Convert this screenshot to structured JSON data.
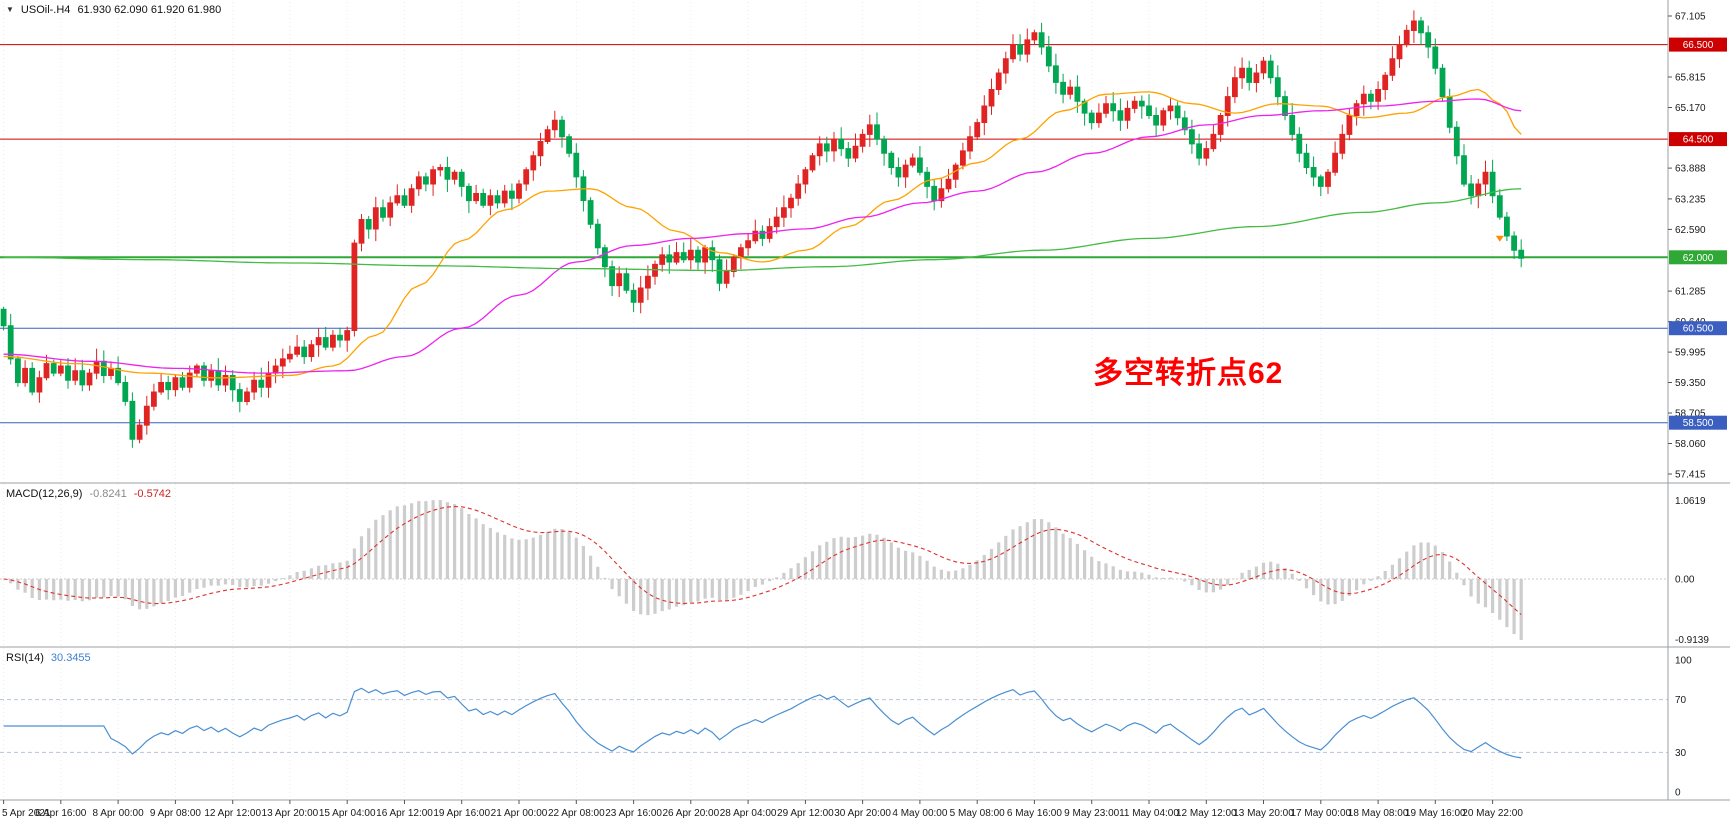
{
  "header": {
    "collapse_icon": "▼",
    "symbol_period": "USOil-.H4",
    "ohlc": "61.930 62.090 61.920 61.980"
  },
  "annotation": {
    "text": "多空转折点62",
    "color": "#ff0000"
  },
  "indicators": {
    "macd": {
      "label": "MACD(12,26,9)",
      "value_main": "-0.8241",
      "value_signal": "-0.5742",
      "scale_max": "1.0619",
      "scale_zero": "0.00",
      "scale_min": "-0.9139",
      "histogram_color": "#cdcdcd",
      "signal_color": "#e03030"
    },
    "rsi": {
      "label": "RSI(14)",
      "value": "30.3455",
      "line_color": "#4a8fd3",
      "levels": [
        70,
        30
      ],
      "scale_points": [
        {
          "label": "100",
          "value": 100
        },
        {
          "label": "70",
          "value": 70
        },
        {
          "label": "30",
          "value": 30
        },
        {
          "label": "0",
          "value": 0
        }
      ]
    }
  },
  "price_axis": {
    "ticks": [
      {
        "label": "67.105",
        "price": 67.105
      },
      {
        "label": "65.815",
        "price": 65.815
      },
      {
        "label": "65.170",
        "price": 65.17
      },
      {
        "label": "63.888",
        "price": 63.888
      },
      {
        "label": "63.235",
        "price": 63.235
      },
      {
        "label": "62.590",
        "price": 62.59
      },
      {
        "label": "61.285",
        "price": 61.285
      },
      {
        "label": "60.640",
        "price": 60.64
      },
      {
        "label": "59.995",
        "price": 59.995
      },
      {
        "label": "59.350",
        "price": 59.35
      },
      {
        "label": "58.705",
        "price": 58.705
      },
      {
        "label": "58.060",
        "price": 58.06
      },
      {
        "label": "57.415",
        "price": 57.415
      }
    ],
    "badges": [
      {
        "label": "66.500",
        "price": 66.5,
        "color": "#cc0000"
      },
      {
        "label": "64.500",
        "price": 64.5,
        "color": "#cc0000"
      },
      {
        "label": "62.000",
        "price": 62.0,
        "color": "#2fa836"
      },
      {
        "label": "60.500",
        "price": 60.5,
        "color": "#3b5fc0"
      },
      {
        "label": "58.500",
        "price": 58.5,
        "color": "#3b5fc0"
      }
    ]
  },
  "time_axis": [
    "5 Apr 2021",
    "6 Apr 16:00",
    "8 Apr 00:00",
    "9 Apr 08:00",
    "12 Apr 12:00",
    "13 Apr 20:00",
    "15 Apr 04:00",
    "16 Apr 12:00",
    "19 Apr 16:00",
    "21 Apr 00:00",
    "22 Apr 08:00",
    "23 Apr 16:00",
    "26 Apr 20:00",
    "28 Apr 04:00",
    "29 Apr 12:00",
    "30 Apr 20:00",
    "4 May 00:00",
    "5 May 08:00",
    "6 May 16:00",
    "9 May 23:00",
    "11 May 04:00",
    "12 May 12:00",
    "13 May 20:00",
    "17 May 00:00",
    "18 May 08:00",
    "19 May 16:00",
    "20 May 22:00"
  ],
  "chart_data": {
    "type": "candlestick",
    "symbol": "USOil",
    "timeframe": "H4",
    "title": "USOil-.H4",
    "price_range": [
      57.415,
      67.105
    ],
    "bars_per_time_label": 8,
    "right_gap_bars": 20,
    "up_color": "#df2423",
    "down_color": "#00a651",
    "closes": [
      60.55,
      59.85,
      59.35,
      59.65,
      59.15,
      59.45,
      59.75,
      59.55,
      59.7,
      59.4,
      59.6,
      59.3,
      59.55,
      59.8,
      59.5,
      59.65,
      59.35,
      58.95,
      58.15,
      58.45,
      58.85,
      59.15,
      59.35,
      59.2,
      59.45,
      59.25,
      59.55,
      59.7,
      59.4,
      59.6,
      59.3,
      59.5,
      59.2,
      58.95,
      59.15,
      59.4,
      59.25,
      59.55,
      59.7,
      59.85,
      59.95,
      60.1,
      59.9,
      60.15,
      60.3,
      60.1,
      60.35,
      60.25,
      60.45,
      62.3,
      62.8,
      62.6,
      63.05,
      62.85,
      63.15,
      63.3,
      63.1,
      63.45,
      63.7,
      63.55,
      63.85,
      63.9,
      63.65,
      63.8,
      63.5,
      63.2,
      63.35,
      63.1,
      63.3,
      63.15,
      63.4,
      63.25,
      63.55,
      63.85,
      64.15,
      64.45,
      64.7,
      64.9,
      64.55,
      64.2,
      63.7,
      63.2,
      62.7,
      62.2,
      61.8,
      61.4,
      61.65,
      61.3,
      61.05,
      61.35,
      61.6,
      61.85,
      62.05,
      61.9,
      62.1,
      61.95,
      62.15,
      61.9,
      62.2,
      61.95,
      61.45,
      61.7,
      62.0,
      62.2,
      62.35,
      62.55,
      62.4,
      62.65,
      62.85,
      63.05,
      63.25,
      63.55,
      63.85,
      64.15,
      64.4,
      64.25,
      64.5,
      64.3,
      64.1,
      64.35,
      64.6,
      64.8,
      64.5,
      64.2,
      63.9,
      63.7,
      63.95,
      64.1,
      63.8,
      63.5,
      63.2,
      63.45,
      63.65,
      63.95,
      64.25,
      64.55,
      64.85,
      65.2,
      65.55,
      65.9,
      66.2,
      66.5,
      66.3,
      66.6,
      66.75,
      66.45,
      66.05,
      65.7,
      65.45,
      65.6,
      65.3,
      65.05,
      64.85,
      65.05,
      65.25,
      65.1,
      64.9,
      65.15,
      65.3,
      65.2,
      65.0,
      64.8,
      65.1,
      65.2,
      64.95,
      64.7,
      64.4,
      64.1,
      64.3,
      64.6,
      65.0,
      65.4,
      65.8,
      66.0,
      65.7,
      65.9,
      66.15,
      65.8,
      65.4,
      65.0,
      64.6,
      64.2,
      63.9,
      63.7,
      63.5,
      63.8,
      64.2,
      64.6,
      65.0,
      65.25,
      65.45,
      65.3,
      65.55,
      65.85,
      66.2,
      66.5,
      66.8,
      67.0,
      66.75,
      66.45,
      66.0,
      65.4,
      64.75,
      64.15,
      63.55,
      63.3,
      63.55,
      63.8,
      63.3,
      62.85,
      62.45,
      62.15,
      61.98
    ],
    "hlines": [
      {
        "price": 66.5,
        "color": "#cc0000",
        "width": 1
      },
      {
        "price": 64.5,
        "color": "#cc0000",
        "width": 1
      },
      {
        "price": 62.0,
        "color": "#2fa836",
        "width": 2
      },
      {
        "price": 60.5,
        "color": "#3b5fc0",
        "width": 1
      },
      {
        "price": 58.5,
        "color": "#3b5fc0",
        "width": 1
      }
    ],
    "moving_averages": [
      {
        "name": "ma-fast-orange",
        "color": "#ffa200",
        "points": [
          [
            0,
            59.9
          ],
          [
            10,
            59.75
          ],
          [
            20,
            59.55
          ],
          [
            30,
            59.45
          ],
          [
            40,
            59.5
          ],
          [
            46,
            59.7
          ],
          [
            52,
            60.35
          ],
          [
            58,
            61.4
          ],
          [
            64,
            62.35
          ],
          [
            70,
            63.0
          ],
          [
            76,
            63.4
          ],
          [
            82,
            63.45
          ],
          [
            88,
            63.05
          ],
          [
            94,
            62.55
          ],
          [
            100,
            62.1
          ],
          [
            106,
            61.9
          ],
          [
            112,
            62.15
          ],
          [
            118,
            62.65
          ],
          [
            124,
            63.2
          ],
          [
            130,
            63.65
          ],
          [
            136,
            64.0
          ],
          [
            142,
            64.5
          ],
          [
            148,
            65.1
          ],
          [
            154,
            65.45
          ],
          [
            160,
            65.5
          ],
          [
            166,
            65.25
          ],
          [
            172,
            65.05
          ],
          [
            178,
            65.25
          ],
          [
            184,
            65.2
          ],
          [
            190,
            64.95
          ],
          [
            196,
            65.05
          ],
          [
            202,
            65.4
          ],
          [
            206,
            65.55
          ],
          [
            209,
            65.25
          ],
          [
            212,
            64.6
          ]
        ]
      },
      {
        "name": "ma-mid-magenta",
        "color": "#ee22ee",
        "points": [
          [
            0,
            59.95
          ],
          [
            12,
            59.8
          ],
          [
            24,
            59.65
          ],
          [
            36,
            59.55
          ],
          [
            48,
            59.6
          ],
          [
            56,
            59.9
          ],
          [
            64,
            60.5
          ],
          [
            72,
            61.2
          ],
          [
            80,
            61.9
          ],
          [
            88,
            62.25
          ],
          [
            96,
            62.4
          ],
          [
            104,
            62.5
          ],
          [
            112,
            62.6
          ],
          [
            120,
            62.85
          ],
          [
            128,
            63.15
          ],
          [
            136,
            63.4
          ],
          [
            144,
            63.8
          ],
          [
            152,
            64.2
          ],
          [
            160,
            64.55
          ],
          [
            168,
            64.8
          ],
          [
            176,
            65.0
          ],
          [
            184,
            65.1
          ],
          [
            192,
            65.2
          ],
          [
            200,
            65.3
          ],
          [
            206,
            65.35
          ],
          [
            212,
            65.1
          ]
        ]
      },
      {
        "name": "ma-slow-green",
        "color": "#44bb44",
        "points": [
          [
            0,
            62.0
          ],
          [
            20,
            61.95
          ],
          [
            40,
            61.88
          ],
          [
            60,
            61.82
          ],
          [
            80,
            61.76
          ],
          [
            100,
            61.72
          ],
          [
            115,
            61.8
          ],
          [
            130,
            61.95
          ],
          [
            145,
            62.15
          ],
          [
            160,
            62.4
          ],
          [
            175,
            62.65
          ],
          [
            190,
            62.95
          ],
          [
            200,
            63.15
          ],
          [
            212,
            63.45
          ]
        ]
      }
    ],
    "macd": {
      "fast": 12,
      "slow": 26,
      "signal": 9,
      "last_main": -0.8241,
      "last_signal": -0.5742,
      "scale": [
        -0.9139,
        1.0619
      ]
    },
    "rsi": {
      "period": 14,
      "last": 30.3455,
      "range": [
        0,
        100
      ]
    }
  }
}
